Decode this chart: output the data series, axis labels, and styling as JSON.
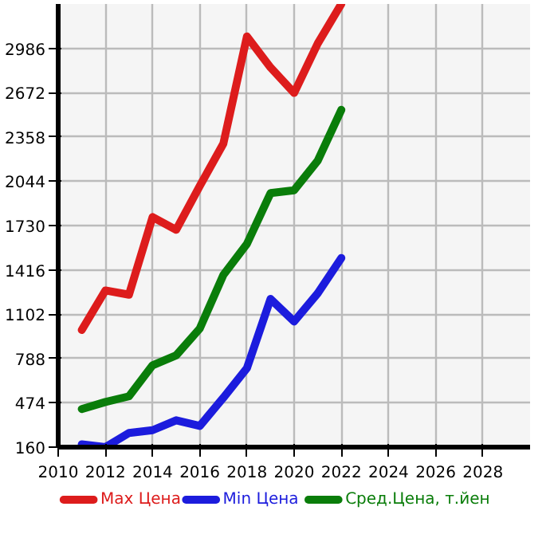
{
  "chart_data": {
    "type": "line",
    "x": [
      2011,
      2012,
      2013,
      2014,
      2015,
      2016,
      2017,
      2018,
      2019,
      2020,
      2021,
      2022
    ],
    "series": [
      {
        "name": "Max Цена",
        "color": "#dd1c1c",
        "values": [
          990,
          1270,
          1240,
          1790,
          1700,
          2010,
          2310,
          3070,
          2850,
          2670,
          3020,
          3300
        ]
      },
      {
        "name": "Min Цена",
        "color": "#1c1cdd",
        "values": [
          180,
          160,
          260,
          280,
          350,
          310,
          510,
          720,
          1210,
          1050,
          1250,
          1500
        ]
      },
      {
        "name": "Сред.Цена, т.йен",
        "color": "#0a7d0a",
        "values": [
          430,
          480,
          520,
          740,
          810,
          1000,
          1380,
          1600,
          1960,
          1980,
          2190,
          2550
        ]
      }
    ],
    "xlim": [
      2010,
      2030
    ],
    "ylim": [
      160,
      3300
    ],
    "xticks": [
      2010,
      2012,
      2014,
      2016,
      2018,
      2020,
      2022,
      2024,
      2026,
      2028
    ],
    "yticks": [
      160,
      474,
      788,
      1102,
      1416,
      1730,
      2044,
      2358,
      2672,
      2986
    ],
    "grid": true,
    "legend": "bottom",
    "marker": "none",
    "line_style": "solid"
  }
}
